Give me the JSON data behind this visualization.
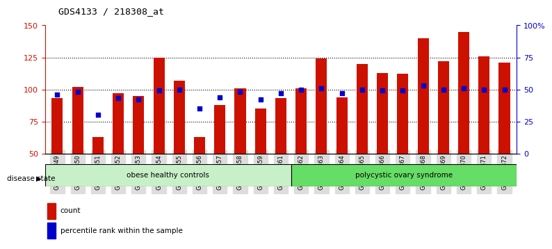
{
  "title": "GDS4133 / 218308_at",
  "samples": [
    "GSM201849",
    "GSM201850",
    "GSM201851",
    "GSM201852",
    "GSM201853",
    "GSM201854",
    "GSM201855",
    "GSM201856",
    "GSM201857",
    "GSM201858",
    "GSM201859",
    "GSM201861",
    "GSM201862",
    "GSM201863",
    "GSM201864",
    "GSM201865",
    "GSM201866",
    "GSM201867",
    "GSM201868",
    "GSM201869",
    "GSM201870",
    "GSM201871",
    "GSM201872"
  ],
  "counts": [
    93,
    102,
    63,
    97,
    95,
    125,
    107,
    63,
    88,
    101,
    85,
    93,
    101,
    124,
    94,
    120,
    113,
    112,
    140,
    122,
    145,
    126,
    121
  ],
  "percentiles": [
    46,
    48,
    30,
    43,
    42,
    49,
    50,
    35,
    44,
    48,
    42,
    47,
    50,
    51,
    47,
    50,
    49,
    49,
    53,
    50,
    51,
    50,
    50
  ],
  "groups": [
    {
      "label": "obese healthy controls",
      "start": 0,
      "end": 12,
      "color": "#c8f0c8"
    },
    {
      "label": "polycystic ovary syndrome",
      "start": 12,
      "end": 23,
      "color": "#66dd66"
    }
  ],
  "bar_color": "#cc1100",
  "dot_color": "#0000cc",
  "ylim_left": [
    50,
    150
  ],
  "ylim_right": [
    0,
    100
  ],
  "yticks_left": [
    50,
    75,
    100,
    125,
    150
  ],
  "yticks_right": [
    0,
    25,
    50,
    75,
    100
  ],
  "ytick_labels_right": [
    "0",
    "25",
    "50",
    "75",
    "100%"
  ],
  "grid_values": [
    75,
    100,
    125
  ],
  "background_color": "#ffffff",
  "legend_count_label": "count",
  "legend_percentile_label": "percentile rank within the sample"
}
